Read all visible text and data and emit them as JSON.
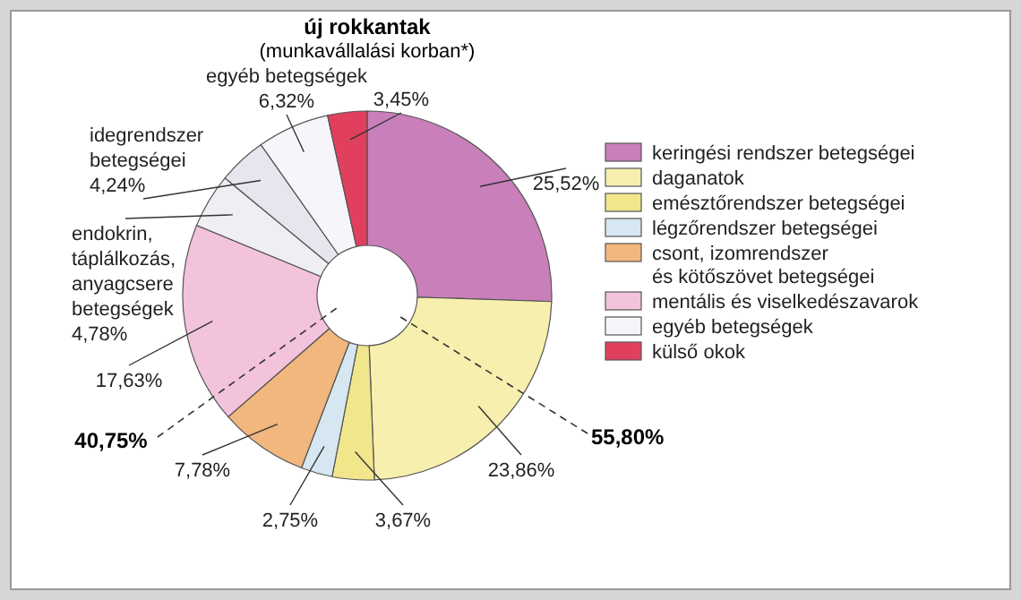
{
  "chart_data": {
    "type": "donut",
    "title": "új rokkantak",
    "subtitle": "(munkavállalási korban*)",
    "categories": [
      "keringési rendszer betegségei",
      "daganatok",
      "emésztőrendszer betegségei",
      "légzőrendszer betegségei",
      "csont, izomrendszer\nés kötőszövet betegségei",
      "mentális és viselkedészavarok",
      null,
      null,
      "egyéb betegségek",
      "külső okok"
    ],
    "values": [
      25.52,
      23.86,
      3.67,
      2.75,
      7.78,
      17.63,
      4.78,
      4.24,
      6.32,
      3.45
    ],
    "colors": [
      "#c97fb9",
      "#f6efae",
      "#f1e68c",
      "#d6e7f1",
      "#f2b77e",
      "#f3c3db",
      "#eeeef3",
      "#e6e6ee",
      "#f6f6fa",
      "#e0405e"
    ],
    "value_labels": [
      "25,52%",
      "23,86%",
      "3,67%",
      "2,75%",
      "7,78%",
      "17,63%",
      "endokrin,\ntáplálkozás,\nanyagcsere\nbetegségek\n4,78%",
      "idegrendszer\nbetegségei\n4,24%",
      "egyéb betegségek\n6,32%",
      "3,45%"
    ],
    "annotations": [
      "55,80%",
      "40,75%"
    ],
    "legend": "right"
  }
}
